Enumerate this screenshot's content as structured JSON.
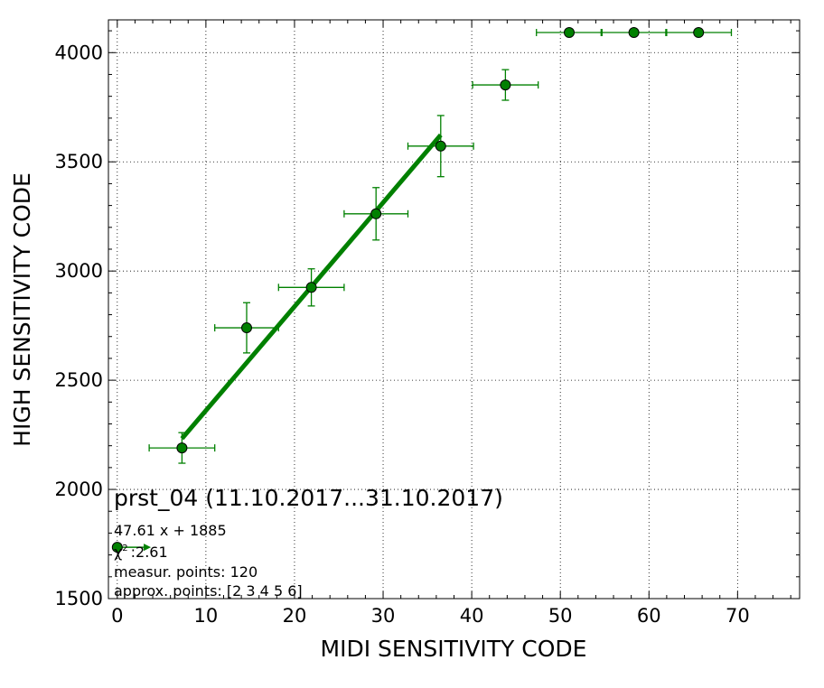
{
  "chart_data": {
    "type": "scatter",
    "xlabel": "MIDI SENSITIVITY CODE",
    "ylabel": "HIGH SENSITIVITY CODE",
    "xlim": [
      -1,
      77
    ],
    "ylim": [
      1500,
      4150
    ],
    "xticks": [
      0,
      10,
      20,
      30,
      40,
      50,
      60,
      70
    ],
    "yticks": [
      1500,
      2000,
      2500,
      3000,
      3500,
      4000
    ],
    "grid": true,
    "colors": {
      "series": "#008000",
      "marker_edge": "#000000"
    },
    "points": [
      {
        "x": 7.3,
        "y": 2190,
        "xerr": 3.7,
        "yerr": 70
      },
      {
        "x": 14.6,
        "y": 2740,
        "xerr": 3.6,
        "yerr": 115
      },
      {
        "x": 21.9,
        "y": 2925,
        "xerr": 3.7,
        "yerr": 85
      },
      {
        "x": 29.2,
        "y": 3262,
        "xerr": 3.6,
        "yerr": 120
      },
      {
        "x": 36.5,
        "y": 3572,
        "xerr": 3.7,
        "yerr": 140
      },
      {
        "x": 43.8,
        "y": 3852,
        "xerr": 3.7,
        "yerr": 70
      },
      {
        "x": 51.0,
        "y": 4092,
        "xerr": 3.7,
        "yerr": 0
      },
      {
        "x": 58.3,
        "y": 4092,
        "xerr": 3.7,
        "yerr": 0
      },
      {
        "x": 65.6,
        "y": 4092,
        "xerr": 3.7,
        "yerr": 0
      }
    ],
    "fit": {
      "slope": 47.61,
      "intercept": 1885,
      "x_range": [
        7.3,
        36.5
      ]
    },
    "legend_marker": {
      "x": 0,
      "y": 1735,
      "arrow_to_x": 3.8
    },
    "annotations": {
      "title": "prst_04 (11.10.2017...31.10.2017)",
      "equation": "47.61 x + 1885",
      "chi_label": "χ",
      "chi_sup": "2",
      "chi_value": ":2.61",
      "measur_points": "measur. points: 120",
      "approx_points": "approx. points: [2 3 4 5 6]"
    }
  }
}
